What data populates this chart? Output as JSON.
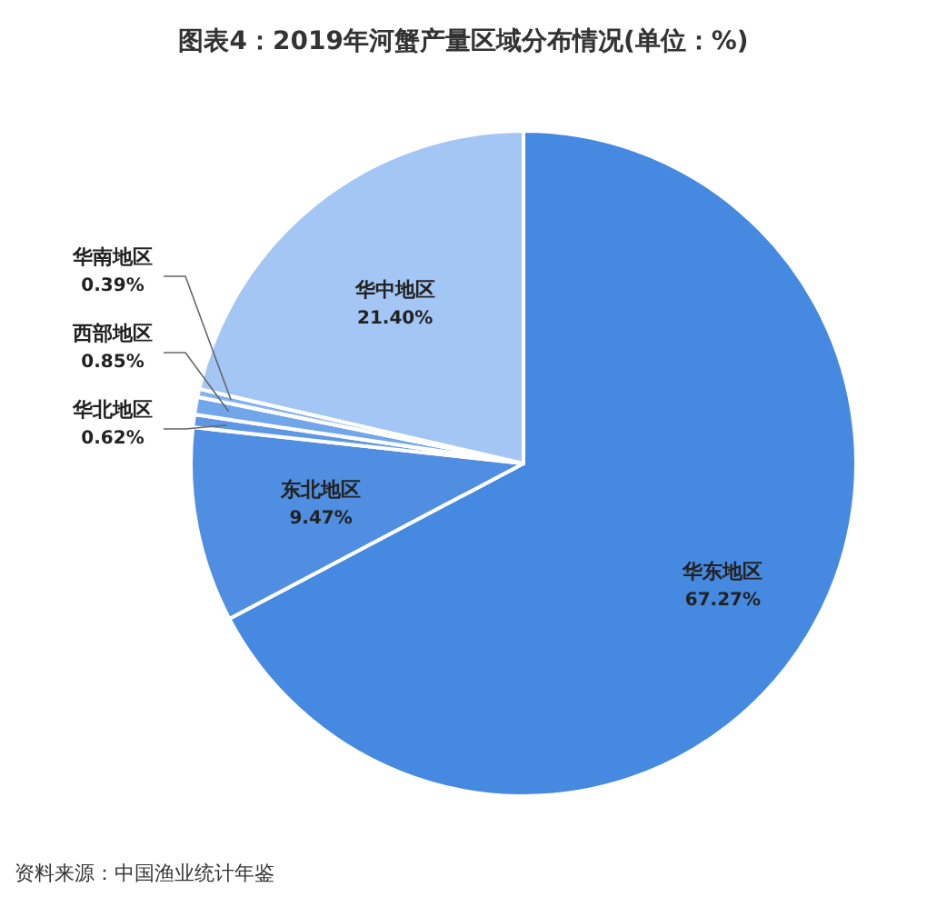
{
  "chart_data": {
    "type": "pie",
    "title": "图表4：2019年河蟹产量区域分布情况(单位：%)",
    "categories": [
      "华东地区",
      "东北地区",
      "华北地区",
      "西部地区",
      "华南地区",
      "华中地区"
    ],
    "values": [
      67.27,
      9.47,
      0.62,
      0.85,
      0.39,
      21.4
    ],
    "value_labels": [
      "67.27%",
      "9.47%",
      "0.62%",
      "0.85%",
      "0.39%",
      "21.40%"
    ],
    "colors": [
      "#4689e0",
      "#4f8ee0",
      "#5e98e4",
      "#72a6ea",
      "#86b3ee",
      "#a3c6f4"
    ],
    "annotations": [
      "资料来源：中国渔业统计年鉴"
    ]
  }
}
